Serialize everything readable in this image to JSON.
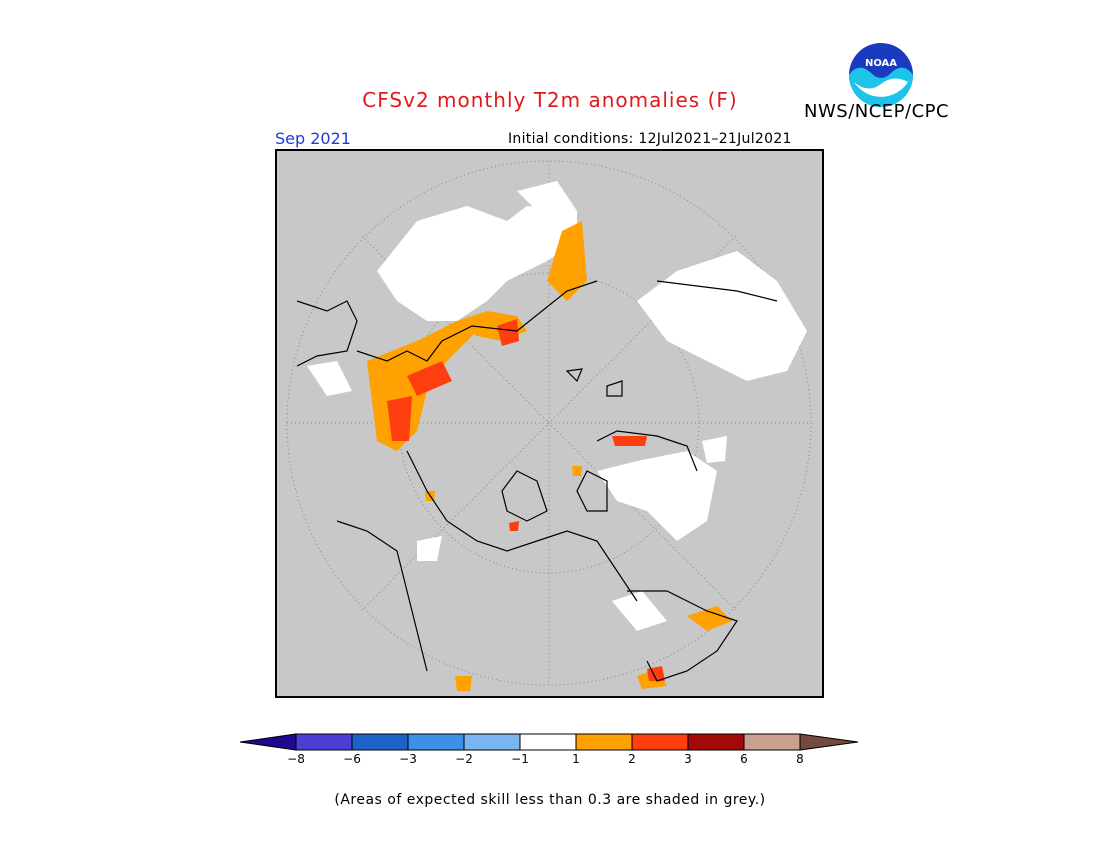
{
  "header": {
    "title": "CFSv2 monthly T2m anomalies (F)",
    "agency": "NWS/NCEP/CPC",
    "logo_text": "NOAA",
    "month": "Sep 2021",
    "initial_conditions": "Initial conditions: 12Jul2021–21Jul2021"
  },
  "map": {
    "projection": "north-polar-stereographic",
    "background_color": "#c8c8c8",
    "anomaly_regions": [
      {
        "region": "western-russia-kazakhstan",
        "category": "1 to 2"
      },
      {
        "region": "western-russia-kazakhstan-core",
        "category": "2 to 3"
      },
      {
        "region": "northern-europe-baltic",
        "category": "1 to 2"
      },
      {
        "region": "north-china-mongolia",
        "category": "1 to 2"
      },
      {
        "region": "greenland-coast",
        "category": "2 to 3"
      },
      {
        "region": "eastern-canada",
        "category": "1 to 2"
      },
      {
        "region": "caribbean-south-america-edge",
        "category": "2 to 3"
      }
    ]
  },
  "colorbar": {
    "colors": [
      "#1d0a8e",
      "#4a3fd2",
      "#1c62c9",
      "#3d8fe8",
      "#79b5f0",
      "#ffffff",
      "#ffa100",
      "#ff3e10",
      "#a50a0a",
      "#c9a18e",
      "#734a3b"
    ],
    "tick_labels": [
      "−8",
      "−6",
      "−3",
      "−2",
      "−1",
      "1",
      "2",
      "3",
      "6",
      "8"
    ]
  },
  "footnote": "(Areas of expected skill less than 0.3 are shaded in grey.)"
}
